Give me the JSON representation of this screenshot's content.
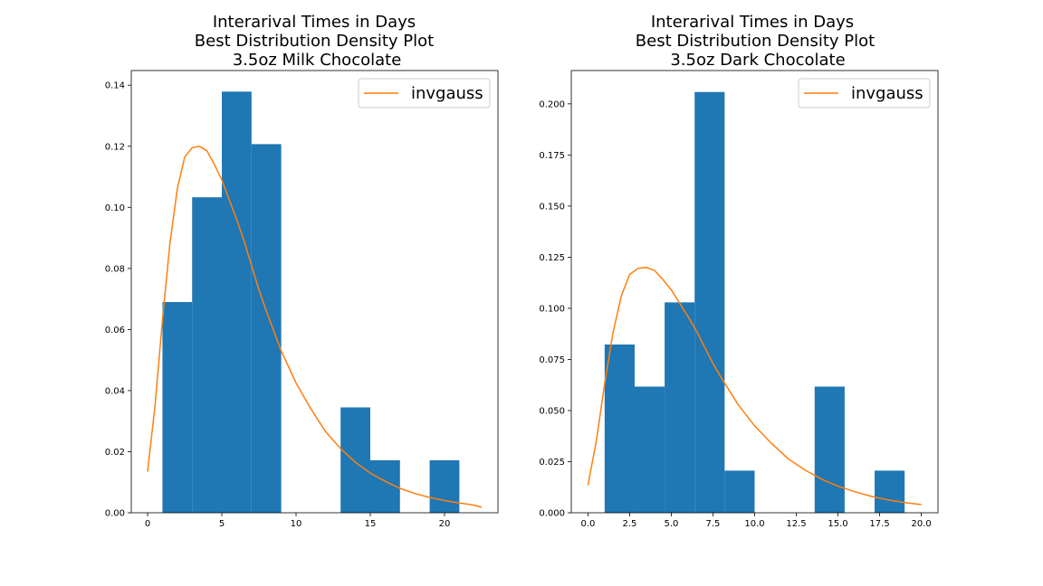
{
  "chart_data": [
    {
      "type": "bar",
      "title_lines": [
        "Interarival Times in Days",
        "Best Distribution Density Plot",
        "3.5oz Milk Chocolate"
      ],
      "xlabel": "",
      "ylabel": "",
      "xlim": [
        -1.1,
        23.6
      ],
      "ylim": [
        0,
        0.1448
      ],
      "xticks": [
        0,
        5,
        10,
        15,
        20
      ],
      "xtick_labels": [
        "0",
        "5",
        "10",
        "15",
        "20"
      ],
      "yticks": [
        0,
        0.02,
        0.04,
        0.06,
        0.08,
        0.1,
        0.12,
        0.14
      ],
      "ytick_labels": [
        "0.00",
        "0.02",
        "0.04",
        "0.06",
        "0.08",
        "0.10",
        "0.12",
        "0.14"
      ],
      "histogram": {
        "bin_edges": [
          1,
          3,
          5,
          7,
          9,
          11,
          13,
          15,
          17,
          19,
          21
        ],
        "densities": [
          0.069,
          0.1033,
          0.1379,
          0.1207,
          0,
          0,
          0.0345,
          0.0172,
          0,
          0.0172
        ],
        "color": "#1f77b4"
      },
      "curve": {
        "name": "invgauss",
        "color": "#ff7f0e",
        "x": [
          0,
          0.5,
          1,
          1.5,
          2,
          2.5,
          3,
          3.5,
          4,
          4.5,
          5,
          5.5,
          6,
          6.5,
          7,
          7.5,
          8,
          9,
          10,
          11,
          12,
          13,
          14,
          15,
          16,
          17,
          18,
          19,
          20,
          21,
          22,
          22.5
        ],
        "y": [
          0.0135,
          0.035,
          0.063,
          0.088,
          0.106,
          0.1165,
          0.1195,
          0.12,
          0.1185,
          0.114,
          0.109,
          0.1025,
          0.096,
          0.089,
          0.081,
          0.073,
          0.066,
          0.053,
          0.0425,
          0.034,
          0.0265,
          0.021,
          0.0165,
          0.013,
          0.0103,
          0.008,
          0.0063,
          0.005,
          0.004,
          0.0032,
          0.0025,
          0.0018
        ]
      },
      "legend": {
        "entries": [
          "invgauss"
        ],
        "loc": "upper right"
      },
      "grid": false
    },
    {
      "type": "bar",
      "title_lines": [
        "Interarival Times in Days",
        "Best Distribution Density Plot",
        "3.5oz Dark Chocolate"
      ],
      "xlabel": "",
      "ylabel": "",
      "xlim": [
        -1.0,
        21.0
      ],
      "ylim": [
        0,
        0.2163
      ],
      "xticks": [
        0,
        2.5,
        5,
        7.5,
        10,
        12.5,
        15,
        17.5,
        20
      ],
      "xtick_labels": [
        "0.0",
        "2.5",
        "5.0",
        "7.5",
        "10.0",
        "12.5",
        "15.0",
        "17.5",
        "20.0"
      ],
      "yticks": [
        0,
        0.025,
        0.05,
        0.075,
        0.1,
        0.125,
        0.15,
        0.175,
        0.2
      ],
      "ytick_labels": [
        "0.000",
        "0.025",
        "0.050",
        "0.075",
        "0.100",
        "0.125",
        "0.150",
        "0.175",
        "0.200"
      ],
      "histogram": {
        "bin_edges": [
          1,
          2.8,
          4.6,
          6.4,
          8.2,
          10,
          11.8,
          13.6,
          15.4,
          17.2,
          19
        ],
        "densities": [
          0.0823,
          0.0617,
          0.1029,
          0.2058,
          0.0206,
          0,
          0,
          0.0617,
          0,
          0.0206
        ],
        "color": "#1f77b4"
      },
      "curve": {
        "name": "invgauss",
        "color": "#ff7f0e",
        "x": [
          0,
          0.5,
          1,
          1.5,
          2,
          2.5,
          3,
          3.5,
          4,
          4.5,
          5,
          5.5,
          6,
          6.5,
          7,
          7.5,
          8,
          9,
          10,
          11,
          12,
          13,
          14,
          15,
          16,
          17,
          18,
          19,
          20
        ],
        "y": [
          0.0135,
          0.035,
          0.063,
          0.088,
          0.106,
          0.1165,
          0.1195,
          0.12,
          0.1185,
          0.114,
          0.109,
          0.1025,
          0.096,
          0.089,
          0.081,
          0.073,
          0.066,
          0.053,
          0.0425,
          0.034,
          0.0265,
          0.021,
          0.0165,
          0.013,
          0.0103,
          0.008,
          0.0063,
          0.005,
          0.004
        ]
      },
      "legend": {
        "entries": [
          "invgauss"
        ],
        "loc": "upper right"
      },
      "grid": false
    }
  ]
}
